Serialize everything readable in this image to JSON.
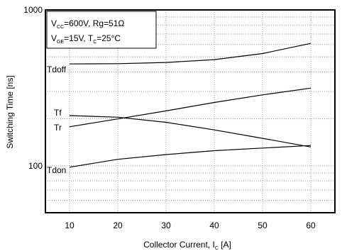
{
  "chart_data": {
    "type": "line",
    "xlabel": "Collector Current, I",
    "xlabel_sub": "C",
    "xlabel_unit": " [A]",
    "ylabel": "Switching Time [ns]",
    "x_ticks": [
      10,
      20,
      30,
      40,
      50,
      60
    ],
    "y_tick_labels": [
      {
        "value": 1000,
        "label": "1000"
      },
      {
        "value": 100,
        "label": "100"
      }
    ],
    "xlim": [
      5,
      65
    ],
    "ylim": [
      50,
      1000
    ],
    "y_scale": "log",
    "grid": "dotted",
    "annotation": {
      "line1": {
        "a": "V",
        "a_sub": "CC",
        "b": "=600V, Rg=51Ω"
      },
      "line2": {
        "a": "V",
        "a_sub": "GE",
        "b": "=15V, T",
        "b_sub": "C",
        "c": "=25°C"
      }
    },
    "series": [
      {
        "name": "Tdoff",
        "x": [
          10,
          20,
          30,
          40,
          50,
          60
        ],
        "y": [
          450,
          452,
          460,
          480,
          525,
          610
        ]
      },
      {
        "name": "Tf",
        "x": [
          10,
          20,
          30,
          40,
          50,
          60
        ],
        "y": [
          210,
          205,
          190,
          170,
          150,
          132
        ]
      },
      {
        "name": "Tr",
        "x": [
          10,
          20,
          30,
          40,
          50,
          60
        ],
        "y": [
          178,
          200,
          225,
          255,
          285,
          315
        ]
      },
      {
        "name": "Tdon",
        "x": [
          10,
          20,
          30,
          40,
          50,
          60
        ],
        "y": [
          98,
          110,
          118,
          125,
          130,
          135
        ]
      }
    ]
  }
}
